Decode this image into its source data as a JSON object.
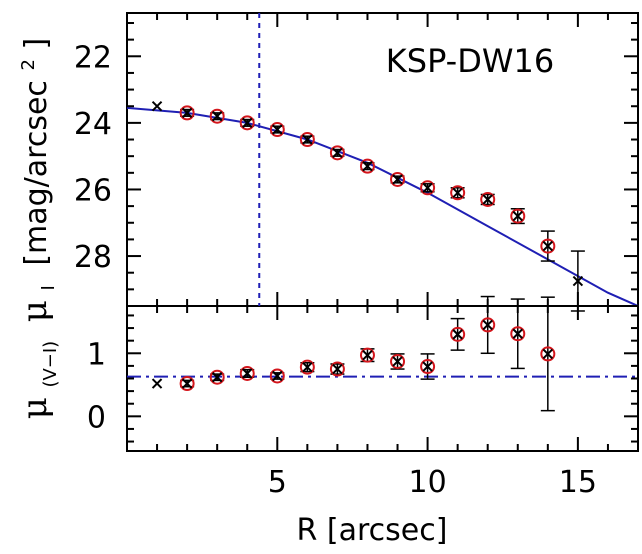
{
  "chart_data": [
    {
      "type": "scatter",
      "panel": "top",
      "annotation": "KSP-DW16",
      "xlabel": "",
      "ylabel": "μ",
      "ylabel_sub": "I",
      "ylabel_units": "[mag/arcsec",
      "ylabel_units_sup": "2",
      "ylabel_units_close": "]",
      "xlim": [
        0,
        17
      ],
      "ylim": [
        29.5,
        20.7
      ],
      "y_inverted": true,
      "yticks": [
        22,
        24,
        26,
        28
      ],
      "vline": {
        "x": 4.4,
        "style": "dotted",
        "color": "#1f1fb4"
      },
      "markers": {
        "cross_color": "#000000",
        "circle_color": "#d4161c"
      },
      "points": [
        {
          "x": 1,
          "y": 23.5,
          "err": 0,
          "circle": false
        },
        {
          "x": 2,
          "y": 23.7,
          "err": 0.1,
          "circle": true
        },
        {
          "x": 3,
          "y": 23.8,
          "err": 0.1,
          "circle": true
        },
        {
          "x": 4,
          "y": 24.0,
          "err": 0.1,
          "circle": true
        },
        {
          "x": 5,
          "y": 24.2,
          "err": 0.1,
          "circle": true
        },
        {
          "x": 6,
          "y": 24.5,
          "err": 0.1,
          "circle": true
        },
        {
          "x": 7,
          "y": 24.9,
          "err": 0.1,
          "circle": true
        },
        {
          "x": 8,
          "y": 25.3,
          "err": 0.1,
          "circle": true
        },
        {
          "x": 9,
          "y": 25.7,
          "err": 0.1,
          "circle": true
        },
        {
          "x": 10,
          "y": 25.95,
          "err": 0.12,
          "circle": true
        },
        {
          "x": 11,
          "y": 26.1,
          "err": 0.15,
          "circle": true
        },
        {
          "x": 12,
          "y": 26.3,
          "err": 0.15,
          "circle": true
        },
        {
          "x": 13,
          "y": 26.8,
          "err": 0.22,
          "circle": true
        },
        {
          "x": 14,
          "y": 27.7,
          "err": 0.45,
          "circle": true
        },
        {
          "x": 15,
          "y": 28.75,
          "err": 0.9,
          "circle": false
        }
      ],
      "fit_curve": {
        "color": "#1f1fb4",
        "points": [
          [
            0,
            23.55
          ],
          [
            2,
            23.7
          ],
          [
            4,
            24.0
          ],
          [
            6,
            24.5
          ],
          [
            8,
            25.2
          ],
          [
            10,
            26.1
          ],
          [
            12,
            27.1
          ],
          [
            14,
            28.1
          ],
          [
            16,
            29.1
          ],
          [
            17,
            29.5
          ]
        ]
      }
    },
    {
      "type": "scatter",
      "panel": "bottom",
      "xlabel": "R [arcsec]",
      "ylabel": "μ",
      "ylabel_sub": "(V−I)",
      "xlim": [
        0,
        17
      ],
      "ylim": [
        -0.55,
        1.75
      ],
      "xticks": [
        5,
        10,
        15
      ],
      "yticks": [
        0,
        1
      ],
      "hline": {
        "y": 0.63,
        "style": "dash-dot",
        "color": "#1f1fb4"
      },
      "markers": {
        "cross_color": "#000000",
        "circle_color": "#d4161c"
      },
      "points": [
        {
          "x": 1,
          "y": 0.52,
          "err": 0,
          "circle": false
        },
        {
          "x": 2,
          "y": 0.52,
          "err": 0.05,
          "circle": true
        },
        {
          "x": 3,
          "y": 0.62,
          "err": 0.05,
          "circle": true
        },
        {
          "x": 4,
          "y": 0.68,
          "err": 0.06,
          "circle": true
        },
        {
          "x": 5,
          "y": 0.64,
          "err": 0.05,
          "circle": true
        },
        {
          "x": 6,
          "y": 0.78,
          "err": 0.07,
          "circle": true
        },
        {
          "x": 7,
          "y": 0.75,
          "err": 0.08,
          "circle": true
        },
        {
          "x": 8,
          "y": 0.97,
          "err": 0.1,
          "circle": true
        },
        {
          "x": 9,
          "y": 0.87,
          "err": 0.12,
          "circle": true
        },
        {
          "x": 10,
          "y": 0.79,
          "err": 0.2,
          "circle": true
        },
        {
          "x": 11,
          "y": 1.3,
          "err": 0.25,
          "circle": true
        },
        {
          "x": 12,
          "y": 1.45,
          "err": 0.45,
          "circle": true
        },
        {
          "x": 13,
          "y": 1.31,
          "err": 0.55,
          "circle": true
        },
        {
          "x": 14,
          "y": 0.99,
          "err": 0.9,
          "circle": true
        }
      ]
    }
  ]
}
